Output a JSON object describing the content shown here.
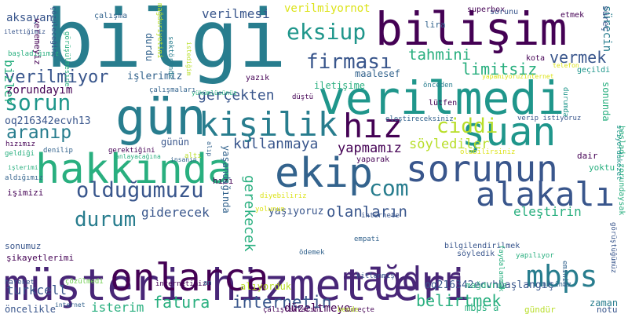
{
  "colors": {
    "purple": "#482677",
    "dark_indigo": "#440154",
    "blue": "#39568c",
    "steel": "#33638d",
    "teal": "#287d8e",
    "cyan": "#1f968b",
    "green": "#29af7f",
    "lime": "#73d055",
    "yellow": "#b8de29",
    "light": "#dce319"
  },
  "words": [
    {
      "text": "bilgi",
      "color": "teal"
    },
    {
      "text": "bilişim",
      "color": "dark_indigo"
    },
    {
      "text": "verilmedi",
      "color": "cyan"
    },
    {
      "text": "gün",
      "color": "teal"
    },
    {
      "text": "müşteri hizmetleri",
      "color": "purple"
    },
    {
      "text": "hakkında",
      "color": "green"
    },
    {
      "text": "kişilik",
      "color": "teal"
    },
    {
      "text": "şuan",
      "color": "cyan"
    },
    {
      "text": "hız",
      "color": "dark_indigo"
    },
    {
      "text": "sorunun",
      "color": "blue"
    },
    {
      "text": "ekip",
      "color": "steel"
    },
    {
      "text": "alakalı",
      "color": "blue"
    },
    {
      "text": "onlarca",
      "color": "dark_indigo"
    },
    {
      "text": "mağdur",
      "color": "purple"
    },
    {
      "text": "mbps",
      "color": "teal"
    },
    {
      "text": "eksiup",
      "color": "cyan"
    },
    {
      "text": "firması",
      "color": "blue"
    },
    {
      "text": "sorun",
      "color": "cyan"
    },
    {
      "text": "ciddi",
      "color": "yellow"
    },
    {
      "text": "olduğumuzu",
      "color": "blue"
    },
    {
      "text": "com",
      "color": "teal"
    },
    {
      "text": "durum",
      "color": "teal"
    },
    {
      "text": "internetin",
      "color": "blue"
    },
    {
      "text": "fatura",
      "color": "green"
    },
    {
      "text": "belirtmek",
      "color": "green"
    },
    {
      "text": "verilmiyor",
      "color": "blue"
    },
    {
      "text": "aranıp",
      "color": "teal"
    },
    {
      "text": "tahmini",
      "color": "green"
    },
    {
      "text": "limitsiz",
      "color": "green"
    },
    {
      "text": "vermek",
      "color": "blue"
    },
    {
      "text": "gerçekten",
      "color": "blue"
    },
    {
      "text": "kullanmaya",
      "color": "blue"
    },
    {
      "text": "söylediler",
      "color": "yellow"
    },
    {
      "text": "yapmamız",
      "color": "dark_indigo"
    },
    {
      "text": "olanların",
      "color": "blue"
    },
    {
      "text": "eleştirin",
      "color": "green"
    },
    {
      "text": "verilmesi",
      "color": "blue"
    },
    {
      "text": "verilmiyornot",
      "color": "light"
    },
    {
      "text": "gerekecek",
      "color": "green"
    },
    {
      "text": "giderecek",
      "color": "blue"
    },
    {
      "text": "turkcell",
      "color": "blue"
    },
    {
      "text": "isterim",
      "color": "green"
    },
    {
      "text": "düzeltmeye",
      "color": "dark_indigo"
    },
    {
      "text": "oq216342ecvh13",
      "color": "blue"
    },
    {
      "text": "oq216342ecvhbaşlangıç",
      "color": "blue"
    },
    {
      "text": "yaşıyoruz",
      "color": "blue"
    },
    {
      "text": "aksayan",
      "color": "blue"
    },
    {
      "text": "bizler",
      "color": "green"
    },
    {
      "text": "zorundayım",
      "color": "dark_indigo"
    },
    {
      "text": "işlerimiz",
      "color": "steel"
    },
    {
      "text": "alıyorduk",
      "color": "yellow"
    },
    {
      "text": "mbps'a",
      "color": "green"
    },
    {
      "text": "zaman",
      "color": "teal"
    },
    {
      "text": "notu",
      "color": "blue"
    },
    {
      "text": "sürecin",
      "color": "teal"
    },
    {
      "text": "maalesef",
      "color": "steel"
    },
    {
      "text": "öncelikle",
      "color": "blue"
    },
    {
      "text": "sonunda",
      "color": "green"
    },
    {
      "text": "iletişime",
      "color": "green"
    },
    {
      "text": "lira",
      "color": "steel"
    },
    {
      "text": "superbox",
      "color": "dark_indigo"
    },
    {
      "text": "etmek",
      "color": "dark_indigo"
    },
    {
      "text": "sorunu",
      "color": "blue"
    },
    {
      "text": "kota",
      "color": "dark_indigo"
    },
    {
      "text": "geçildi",
      "color": "cyan"
    },
    {
      "text": "yazık",
      "color": "dark_indigo"
    },
    {
      "text": "lütfen",
      "color": "dark_indigo"
    },
    {
      "text": "sonumuz",
      "color": "blue"
    },
    {
      "text": "şikayetlerimi",
      "color": "dark_indigo"
    },
    {
      "text": "mağduruz",
      "color": "green"
    },
    {
      "text": "gündür",
      "color": "yellow"
    },
    {
      "text": "hızı",
      "color": "dark_indigo"
    },
    {
      "text": "dair",
      "color": "dark_indigo"
    },
    {
      "text": "yoktu",
      "color": "green"
    },
    {
      "text": "durdu",
      "color": "steel"
    },
    {
      "text": "günün",
      "color": "blue"
    },
    {
      "text": "çalışma",
      "color": "steel"
    },
    {
      "text": "sektöründe",
      "color": "teal"
    },
    {
      "text": "ödemek",
      "color": "steel"
    },
    {
      "text": "eleştireceksiniz",
      "color": "steel"
    },
    {
      "text": "empati",
      "color": "steel"
    },
    {
      "text": "yaparak",
      "color": "dark_indigo"
    },
    {
      "text": "söyledik",
      "color": "blue"
    },
    {
      "text": "internete",
      "color": "blue"
    },
    {
      "text": "bilgilendirilmek",
      "color": "blue"
    },
    {
      "text": "misiniz",
      "color": "steel"
    },
    {
      "text": "kitlenmiş",
      "color": "blue"
    },
    {
      "text": "internetimiz",
      "color": "dark_indigo"
    },
    {
      "text": "süreçte",
      "color": "dark_indigo"
    },
    {
      "text": "bende",
      "color": "yellow"
    },
    {
      "text": "çalıştıklarını",
      "color": "dark_indigo"
    },
    {
      "text": "hareket",
      "color": "blue"
    },
    {
      "text": "çözülmedi",
      "color": "lime"
    },
    {
      "text": "başladığımız",
      "color": "green"
    },
    {
      "text": "yükümlüsünüz",
      "color": "green"
    },
    {
      "text": "düştü",
      "color": "dark_indigo"
    },
    {
      "text": "önceden",
      "color": "teal"
    },
    {
      "text": "verip istiyoruz",
      "color": "blue"
    },
    {
      "text": "gerektiğini",
      "color": "dark_indigo"
    },
    {
      "text": "anlayacağına",
      "color": "green"
    },
    {
      "text": "insanın",
      "color": "steel"
    },
    {
      "text": "denilip",
      "color": "steel"
    },
    {
      "text": "geldiği",
      "color": "green"
    },
    {
      "text": "hızımız",
      "color": "dark_indigo"
    },
    {
      "text": "işlerimi",
      "color": "green"
    },
    {
      "text": "aldığımız",
      "color": "steel"
    },
    {
      "text": "işimizi",
      "color": "dark_indigo"
    },
    {
      "text": "yapılıyor",
      "color": "green"
    },
    {
      "text": "faydalanmak",
      "color": "green"
    },
    {
      "text": "eminim",
      "color": "steel"
    },
    {
      "text": "internet",
      "color": "steel"
    },
    {
      "text": "çözüleceğine",
      "color": "blue"
    },
    {
      "text": "görüşülmesine",
      "color": "green"
    },
    {
      "text": "veremeyiz",
      "color": "dark_indigo"
    },
    {
      "text": "çalışmaları",
      "color": "steel"
    },
    {
      "text": "ilettiğimiz",
      "color": "blue"
    },
    {
      "text": "mağduriyetimi",
      "color": "yellow"
    },
    {
      "text": "istediğim",
      "color": "yellow"
    },
    {
      "text": "yapamıyoruzinternet",
      "color": "light"
    },
    {
      "text": "telefon",
      "color": "light"
    },
    {
      "text": "alıp",
      "color": "steel"
    },
    {
      "text": "yaşandığında",
      "color": "steel"
    },
    {
      "text": "diyebiliriz",
      "color": "light"
    },
    {
      "text": "olabilirsiniz",
      "color": "light"
    },
    {
      "text": "durumda",
      "color": "cyan"
    },
    {
      "text": "görüştüğümüz",
      "color": "blue"
    },
    {
      "text": "başladı zorundaysak",
      "color": "green"
    },
    {
      "text": "sliyorduközet",
      "color": "cyan"
    },
    {
      "text": "süreç",
      "color": "blue"
    },
    {
      "text": "altı",
      "color": "yellow"
    },
    {
      "text": "an",
      "color": "steel"
    },
    {
      "text": "yolunun",
      "color": "light"
    }
  ]
}
